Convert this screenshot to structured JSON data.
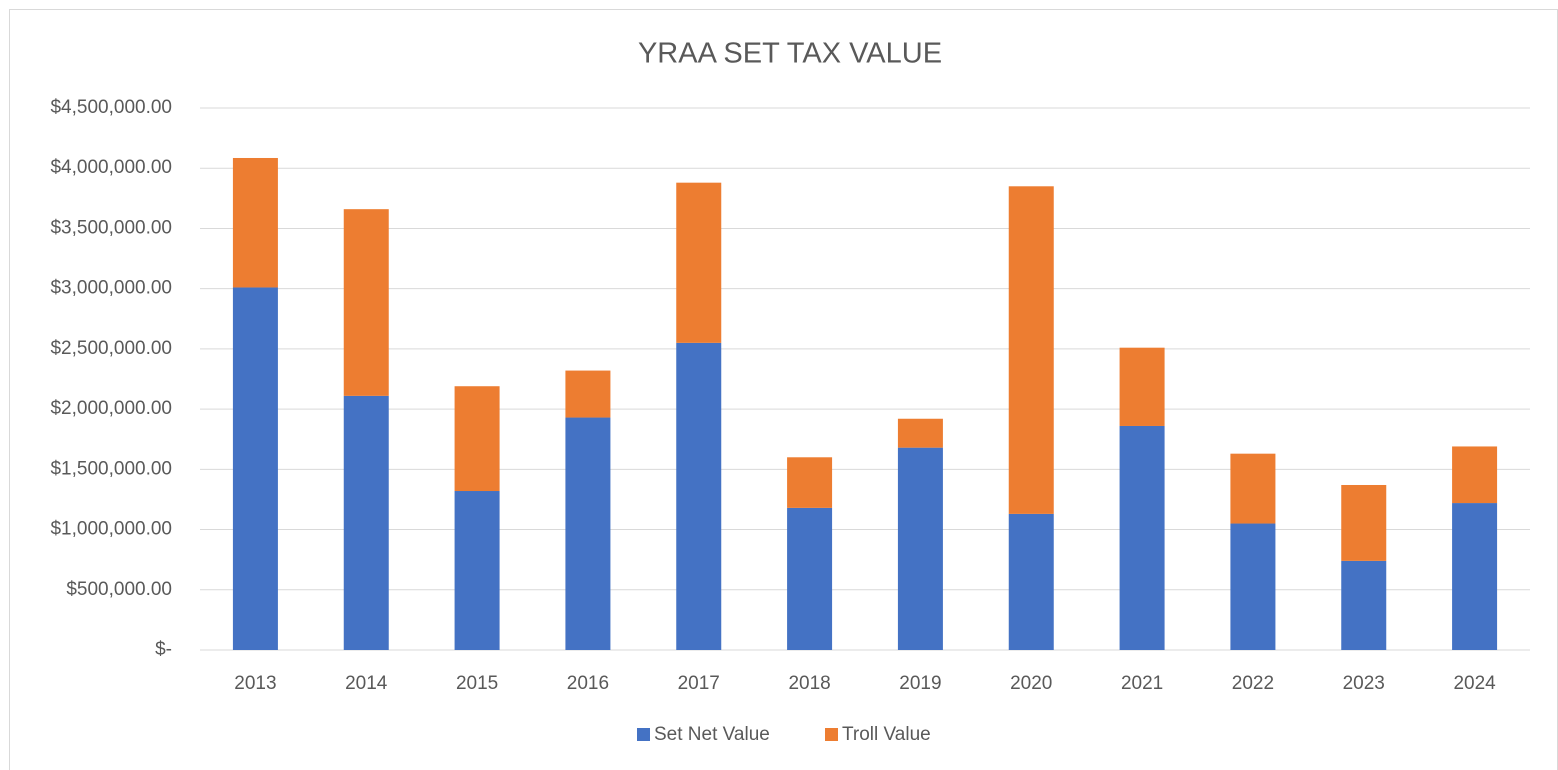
{
  "chart_data": {
    "type": "stacked_bar",
    "title": "YRAA SET TAX VALUE",
    "categories": [
      "2013",
      "2014",
      "2015",
      "2016",
      "2017",
      "2018",
      "2019",
      "2020",
      "2021",
      "2022",
      "2023",
      "2024"
    ],
    "series": [
      {
        "name": "Set Net Value",
        "color": "#4472c4",
        "values": [
          3010000,
          2110000,
          1320000,
          1930000,
          2550000,
          1180000,
          1680000,
          1130000,
          1860000,
          1050000,
          740000,
          1220000
        ]
      },
      {
        "name": "Troll Value",
        "color": "#ed7d31",
        "values": [
          1075000,
          1550000,
          870000,
          390000,
          1330000,
          420000,
          240000,
          2720000,
          650000,
          580000,
          630000,
          470000
        ]
      }
    ],
    "ylim": [
      0,
      4500000
    ],
    "yticks": [
      {
        "value": 0,
        "label": "$-"
      },
      {
        "value": 500000,
        "label": "$500,000.00"
      },
      {
        "value": 1000000,
        "label": "$1,000,000.00"
      },
      {
        "value": 1500000,
        "label": "$1,500,000.00"
      },
      {
        "value": 2000000,
        "label": "$2,000,000.00"
      },
      {
        "value": 2500000,
        "label": "$2,500,000.00"
      },
      {
        "value": 3000000,
        "label": "$3,000,000.00"
      },
      {
        "value": 3500000,
        "label": "$3,500,000.00"
      },
      {
        "value": 4000000,
        "label": "$4,000,000.00"
      },
      {
        "value": 4500000,
        "label": "$4,500,000.00"
      }
    ],
    "grid": true,
    "legend": "bottom"
  }
}
